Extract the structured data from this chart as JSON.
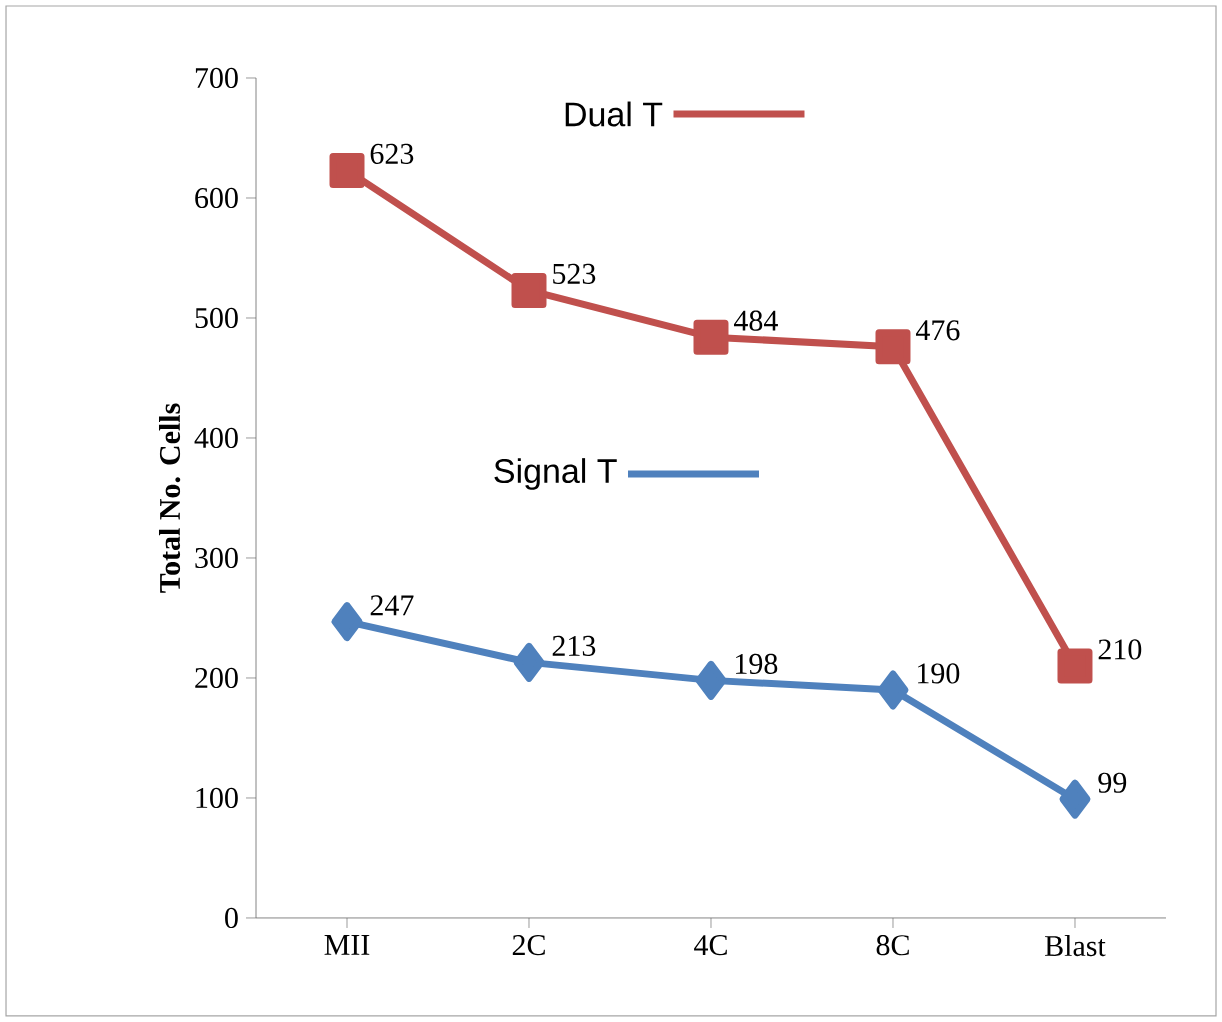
{
  "chart_data": {
    "type": "line",
    "ylabel": "Total No. Cells",
    "categories": [
      "MII",
      "2C",
      "4C",
      "8C",
      "Blast"
    ],
    "series": [
      {
        "name": "Dual T",
        "color": "#c0504d",
        "marker": "square",
        "values": [
          623,
          523,
          484,
          476,
          210
        ]
      },
      {
        "name": "Signal T",
        "color": "#4f81bd",
        "marker": "diamond",
        "values": [
          247,
          213,
          198,
          190,
          99
        ]
      }
    ],
    "ylim": [
      0,
      700
    ],
    "yticks": [
      0,
      100,
      200,
      300,
      400,
      500,
      600,
      700
    ],
    "data_labels": true,
    "grid": false,
    "line_style": "solid",
    "legend": "top"
  }
}
